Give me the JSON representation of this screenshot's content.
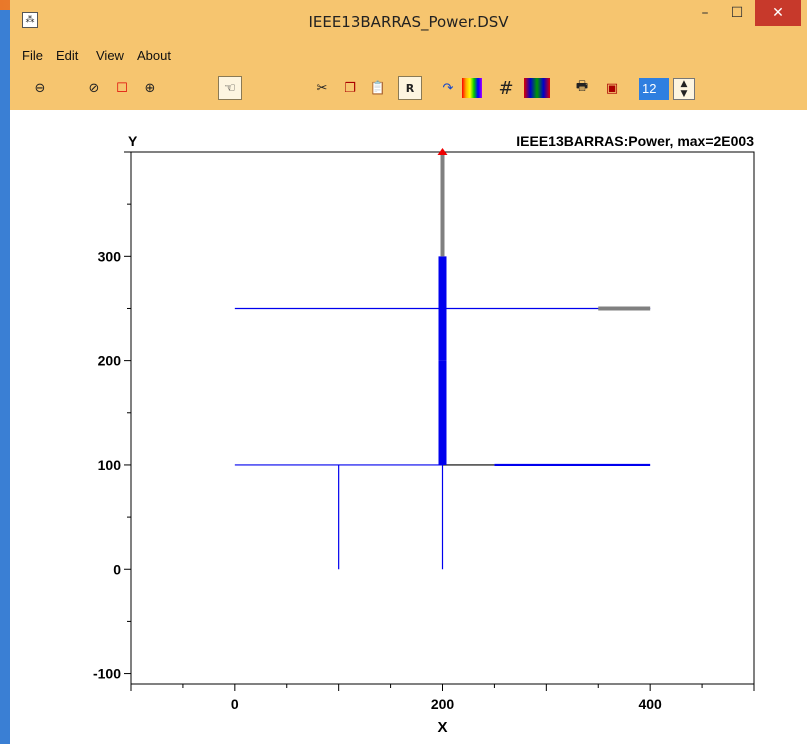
{
  "window": {
    "title": "IEEE13BARRAS_Power.DSV",
    "icon_name": "app-icon",
    "controls": {
      "minimize": "–",
      "maximize": "☐",
      "close": "✕"
    }
  },
  "menu": {
    "items": [
      "File",
      "Edit",
      "View",
      "About"
    ]
  },
  "toolbar": {
    "icons": [
      "zoom-out-icon",
      "zoom-in-icon",
      "zoom-box-icon",
      "zoom-fit-icon",
      "pan-hand-icon",
      "cut-icon",
      "copy-icon",
      "paste-icon",
      "r-button",
      "rotate-icon",
      "rainbow-icon",
      "grid-icon",
      "grid-color-icon",
      "print-icon",
      "save-icon"
    ],
    "r_label": "R",
    "font_size": "12"
  },
  "chart_data": {
    "type": "line",
    "title": "IEEE13BARRAS:Power, max=2E003",
    "xlabel": "X",
    "ylabel": "Y",
    "xlim": [
      -100,
      500
    ],
    "ylim": [
      -110,
      400
    ],
    "x_ticks": [
      0,
      200,
      400
    ],
    "y_ticks": [
      -100,
      0,
      100,
      200,
      300
    ],
    "grid": false,
    "colors": {
      "feeder": "#0000ee",
      "frame": "#000000",
      "upstream": "#808080",
      "source": "#ee0000"
    },
    "segments": [
      {
        "x": [
          0,
          400
        ],
        "y": [
          250,
          250
        ],
        "color": "#0000ee",
        "weight": "thin"
      },
      {
        "x": [
          350,
          400
        ],
        "y": [
          250,
          250
        ],
        "color": "#808080",
        "weight": "thick"
      },
      {
        "x": [
          0,
          200
        ],
        "y": [
          100,
          100
        ],
        "color": "#0000ee",
        "weight": "thin"
      },
      {
        "x": [
          200,
          250
        ],
        "y": [
          100,
          100
        ],
        "color": "#000000",
        "weight": "thin"
      },
      {
        "x": [
          250,
          400
        ],
        "y": [
          100,
          100
        ],
        "color": "#0000ee",
        "weight": "medium"
      },
      {
        "x": [
          100,
          100
        ],
        "y": [
          0,
          100
        ],
        "color": "#0000ee",
        "weight": "thin"
      },
      {
        "x": [
          200,
          200
        ],
        "y": [
          0,
          100
        ],
        "color": "#0000ee",
        "weight": "thin"
      },
      {
        "x": [
          200,
          200
        ],
        "y": [
          100,
          200
        ],
        "color": "#0000ee",
        "weight": "heavy"
      },
      {
        "x": [
          200,
          200
        ],
        "y": [
          200,
          300
        ],
        "color": "#0000ee",
        "weight": "heavy"
      },
      {
        "x": [
          200,
          200
        ],
        "y": [
          300,
          400
        ],
        "color": "#808080",
        "weight": "thick"
      }
    ],
    "source_marker": {
      "x": 200,
      "y": 400,
      "color": "#ee0000"
    }
  }
}
